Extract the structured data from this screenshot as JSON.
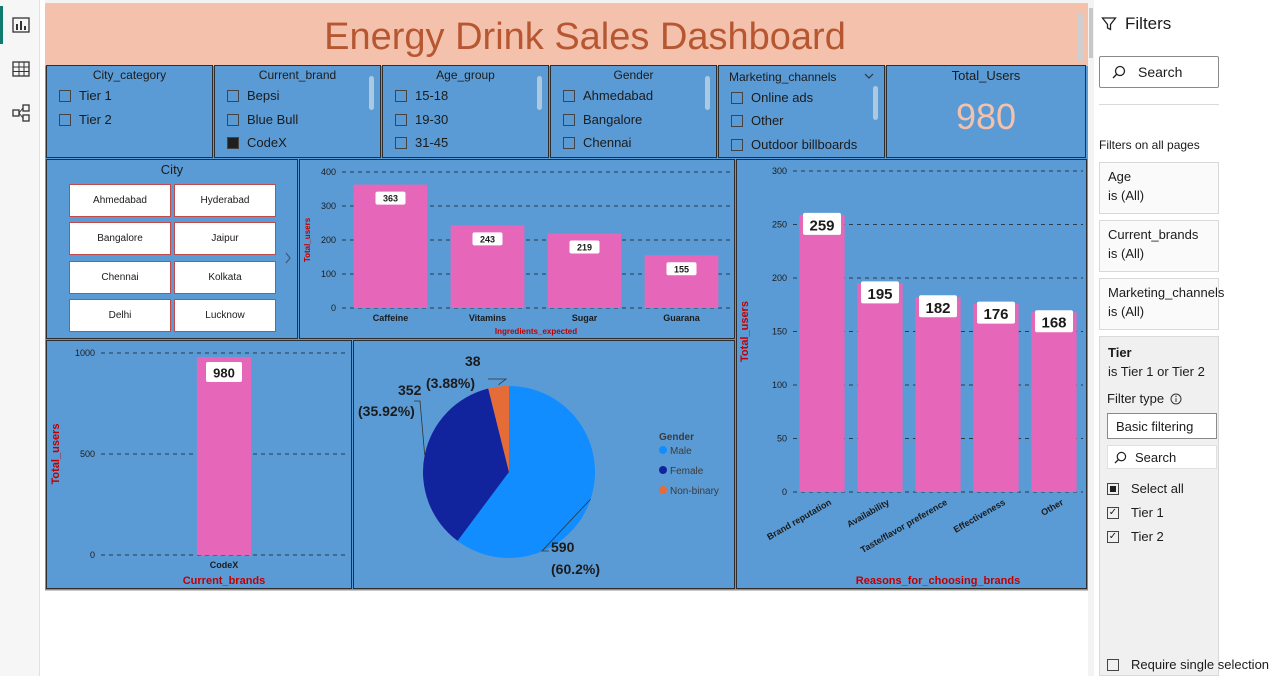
{
  "dashboard": {
    "title": "Energy Drink Sales Dashboard"
  },
  "slicers": {
    "city_category": {
      "title": "City_category",
      "options": [
        "Tier 1",
        "Tier 2"
      ]
    },
    "current_brand": {
      "title": "Current_brand",
      "options": [
        "Bepsi",
        "Blue Bull",
        "CodeX"
      ],
      "selected": "CodeX"
    },
    "age_group": {
      "title": "Age_group",
      "options": [
        "15-18",
        "19-30",
        "31-45"
      ]
    },
    "gender": {
      "title": "Gender",
      "options": [
        "Ahmedabad",
        "Bangalore",
        "Chennai"
      ]
    },
    "marketing_channels": {
      "title": "Marketing_channels",
      "options": [
        "Online ads",
        "Other",
        "Outdoor billboards"
      ]
    }
  },
  "kpi": {
    "label": "Total_Users",
    "value": "980"
  },
  "city": {
    "title": "City",
    "tiles": [
      "Ahmedabad",
      "Hyderabad",
      "Bangalore",
      "Jaipur",
      "Chennai",
      "Kolkata",
      "Delhi",
      "Lucknow"
    ]
  },
  "colors": {
    "bar": "#e667b9",
    "panel": "#5b9bd5",
    "male": "#118dff",
    "female": "#12239e",
    "nonbinary": "#e66c37",
    "header_bg": "#f4c2ac",
    "title": "#b75731"
  },
  "chart_data": [
    {
      "id": "ingredients",
      "type": "bar",
      "categories": [
        "Caffeine",
        "Vitamins",
        "Sugar",
        "Guarana"
      ],
      "values": [
        363,
        243,
        219,
        155
      ],
      "xlabel": "Ingredients_expected",
      "ylabel": "Total_users",
      "ylim": [
        0,
        400
      ],
      "yticks": [
        0,
        100,
        200,
        300,
        400
      ]
    },
    {
      "id": "brands",
      "type": "bar",
      "categories": [
        "CodeX"
      ],
      "values": [
        980
      ],
      "xlabel": "Current_brands",
      "ylabel": "Total_users",
      "ylim": [
        0,
        1000
      ],
      "yticks": [
        0,
        500,
        1000
      ]
    },
    {
      "id": "gender",
      "type": "pie",
      "title": "Gender",
      "categories": [
        "Male",
        "Female",
        "Non-binary"
      ],
      "values": [
        590,
        352,
        38
      ],
      "labels": [
        "590",
        "352",
        "38"
      ],
      "percent_labels": [
        "(60.2%)",
        "(35.92%)",
        "(3.88%)"
      ]
    },
    {
      "id": "reasons",
      "type": "bar",
      "categories": [
        "Brand reputation",
        "Availability",
        "Taste/flavor preference",
        "Effectiveness",
        "Other"
      ],
      "values": [
        259,
        195,
        182,
        176,
        168
      ],
      "xlabel": "Reasons_for_choosing_brands",
      "ylabel": "Total_users",
      "ylim": [
        0,
        300
      ],
      "yticks": [
        0,
        50,
        100,
        150,
        200,
        250,
        300
      ]
    }
  ],
  "filters_pane": {
    "title": "Filters",
    "search_placeholder": "Search",
    "section_label": "Filters on all pages",
    "cards": [
      {
        "field": "Age",
        "state": "is (All)"
      },
      {
        "field": "Current_brands",
        "state": "is (All)"
      },
      {
        "field": "Marketing_channels",
        "state": "is (All)"
      }
    ],
    "active": {
      "field": "Tier",
      "state": "is Tier 1 or Tier 2",
      "filter_type_label": "Filter type",
      "filter_type_value": "Basic filtering",
      "search_placeholder": "Search",
      "select_all": "Select all",
      "options": [
        "Tier 1",
        "Tier 2"
      ],
      "require_single": "Require single selection"
    }
  }
}
